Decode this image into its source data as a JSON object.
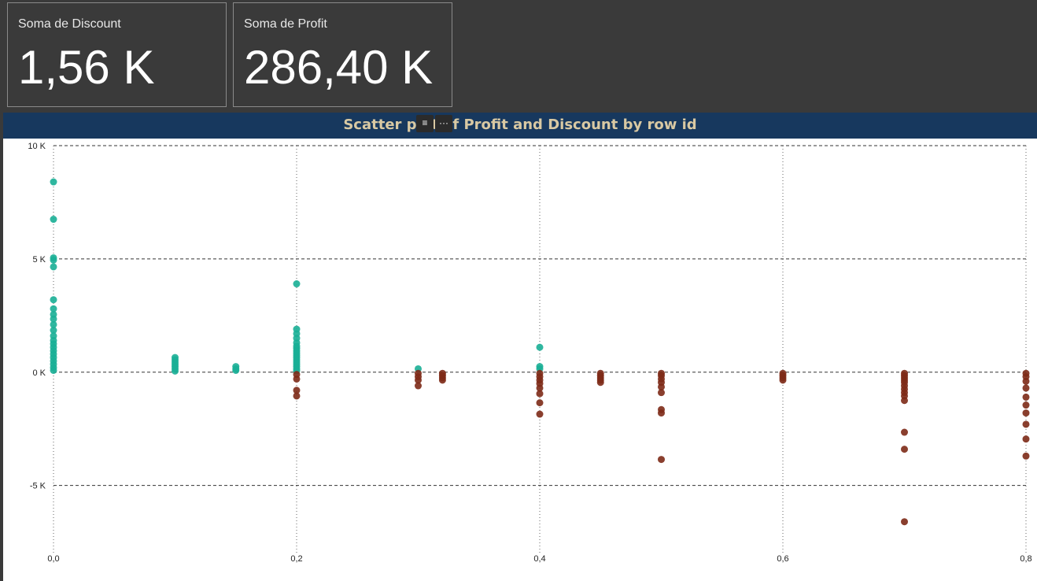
{
  "cards": [
    {
      "label": "Soma de Discount",
      "value": "1,56 K"
    },
    {
      "label": "Soma de Profit",
      "value": "286,40 K"
    }
  ],
  "visual": {
    "title": "Scatter plot of Profit and Discount by row id",
    "icons": [
      "filter-icon",
      "more-options-icon"
    ]
  },
  "colors": {
    "positive": "#1aaf96",
    "negative": "#7d2a17",
    "title_text": "#d9c9a3",
    "title_bg": "#17385e"
  },
  "chart_data": {
    "type": "scatter",
    "title": "Scatter plot of Profit and Discount by row id",
    "xlabel": "",
    "ylabel": "",
    "xlim": [
      0,
      0.8
    ],
    "ylim": [
      -8000,
      10000
    ],
    "x_ticks": [
      "0,0",
      "0,2",
      "0,4",
      "0,6",
      "0,8"
    ],
    "y_ticks": [
      "10 K",
      "5 K",
      "0 K",
      "-5 K"
    ],
    "grid": true,
    "series": [
      {
        "color": "#1aaf96",
        "points": [
          [
            0,
            8400
          ],
          [
            0,
            6750
          ],
          [
            0,
            5050
          ],
          [
            0,
            4950
          ],
          [
            0,
            4650
          ],
          [
            0,
            3200
          ],
          [
            0,
            2800
          ],
          [
            0,
            2550
          ],
          [
            0,
            2350
          ],
          [
            0,
            2100
          ],
          [
            0,
            1850
          ],
          [
            0,
            1600
          ],
          [
            0,
            1400
          ],
          [
            0,
            1250
          ],
          [
            0,
            1100
          ],
          [
            0,
            950
          ],
          [
            0,
            800
          ],
          [
            0,
            650
          ],
          [
            0,
            500
          ],
          [
            0,
            350
          ],
          [
            0,
            200
          ],
          [
            0,
            80
          ],
          [
            0.1,
            650
          ],
          [
            0.1,
            550
          ],
          [
            0.1,
            450
          ],
          [
            0.1,
            350
          ],
          [
            0.1,
            250
          ],
          [
            0.1,
            150
          ],
          [
            0.1,
            50
          ],
          [
            0.15,
            250
          ],
          [
            0.15,
            150
          ],
          [
            0.15,
            80
          ],
          [
            0.2,
            3900
          ],
          [
            0.2,
            1900
          ],
          [
            0.2,
            1700
          ],
          [
            0.2,
            1500
          ],
          [
            0.2,
            1300
          ],
          [
            0.2,
            1150
          ],
          [
            0.2,
            1050
          ],
          [
            0.2,
            950
          ],
          [
            0.2,
            850
          ],
          [
            0.2,
            750
          ],
          [
            0.2,
            650
          ],
          [
            0.2,
            550
          ],
          [
            0.2,
            450
          ],
          [
            0.2,
            350
          ],
          [
            0.2,
            250
          ],
          [
            0.2,
            150
          ],
          [
            0.2,
            60
          ],
          [
            0.3,
            150
          ],
          [
            0.4,
            1100
          ],
          [
            0.4,
            250
          ],
          [
            0.4,
            150
          ]
        ]
      },
      {
        "color": "#7d2a17",
        "points": [
          [
            0.2,
            -100
          ],
          [
            0.2,
            -300
          ],
          [
            0.2,
            -800
          ],
          [
            0.2,
            -1050
          ],
          [
            0.3,
            -50
          ],
          [
            0.3,
            -200
          ],
          [
            0.3,
            -350
          ],
          [
            0.3,
            -600
          ],
          [
            0.32,
            -50
          ],
          [
            0.32,
            -150
          ],
          [
            0.32,
            -250
          ],
          [
            0.32,
            -350
          ],
          [
            0.4,
            -50
          ],
          [
            0.4,
            -200
          ],
          [
            0.4,
            -350
          ],
          [
            0.4,
            -500
          ],
          [
            0.4,
            -700
          ],
          [
            0.4,
            -950
          ],
          [
            0.4,
            -1350
          ],
          [
            0.4,
            -1850
          ],
          [
            0.45,
            -50
          ],
          [
            0.45,
            -150
          ],
          [
            0.45,
            -250
          ],
          [
            0.45,
            -350
          ],
          [
            0.45,
            -450
          ],
          [
            0.5,
            -50
          ],
          [
            0.5,
            -150
          ],
          [
            0.5,
            -300
          ],
          [
            0.5,
            -450
          ],
          [
            0.5,
            -650
          ],
          [
            0.5,
            -900
          ],
          [
            0.5,
            -1650
          ],
          [
            0.5,
            -1800
          ],
          [
            0.5,
            -3850
          ],
          [
            0.6,
            -50
          ],
          [
            0.6,
            -150
          ],
          [
            0.6,
            -250
          ],
          [
            0.6,
            -350
          ],
          [
            0.7,
            -50
          ],
          [
            0.7,
            -150
          ],
          [
            0.7,
            -250
          ],
          [
            0.7,
            -350
          ],
          [
            0.7,
            -450
          ],
          [
            0.7,
            -600
          ],
          [
            0.7,
            -750
          ],
          [
            0.7,
            -900
          ],
          [
            0.7,
            -1050
          ],
          [
            0.7,
            -1250
          ],
          [
            0.7,
            -2650
          ],
          [
            0.7,
            -3400
          ],
          [
            0.7,
            -6600
          ],
          [
            0.8,
            -50
          ],
          [
            0.8,
            -200
          ],
          [
            0.8,
            -400
          ],
          [
            0.8,
            -700
          ],
          [
            0.8,
            -1100
          ],
          [
            0.8,
            -1450
          ],
          [
            0.8,
            -1800
          ],
          [
            0.8,
            -2300
          ],
          [
            0.8,
            -2950
          ],
          [
            0.8,
            -3700
          ]
        ]
      }
    ]
  }
}
